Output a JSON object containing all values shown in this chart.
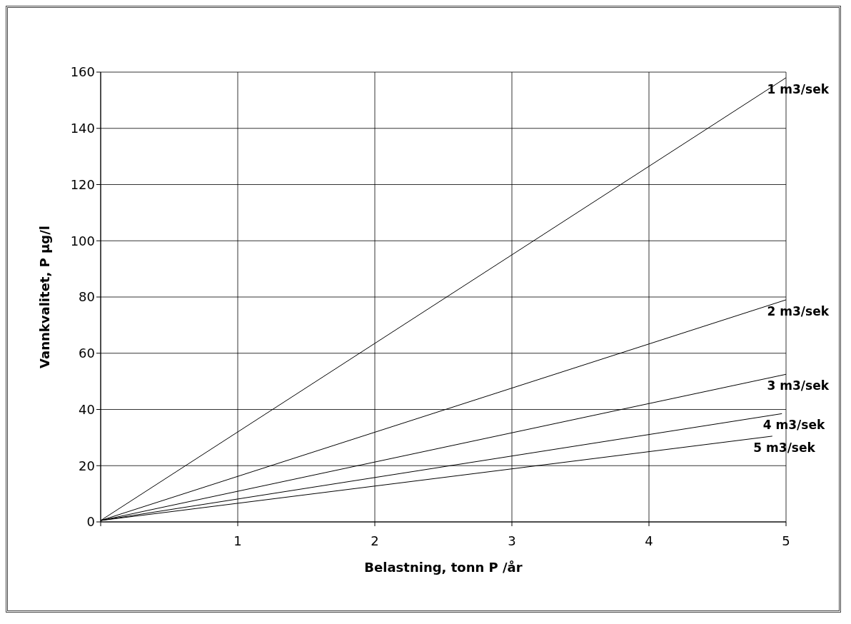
{
  "chart_data": {
    "type": "line",
    "xlabel": "Belastning, tonn P /år",
    "ylabel": "Vannkvalitet, P µg/l",
    "xlim": [
      0,
      5
    ],
    "xticks": [
      {
        "value": 0,
        "label": null
      },
      1,
      2,
      3,
      4,
      5
    ],
    "ylim": [
      0,
      160
    ],
    "yticks": [
      0,
      20,
      40,
      60,
      80,
      100,
      120,
      140,
      160
    ],
    "grid": true,
    "legend": false,
    "marker": "none",
    "line_style": "solid",
    "series": [
      {
        "name": "1 m3/sek",
        "color": "#000000",
        "x": [
          0,
          5
        ],
        "values": [
          0.5,
          158
        ]
      },
      {
        "name": "2 m3/sek",
        "color": "#000000",
        "x": [
          0,
          5
        ],
        "values": [
          0.5,
          79
        ]
      },
      {
        "name": "3 m3/sek",
        "color": "#000000",
        "x": [
          0,
          5
        ],
        "values": [
          0.5,
          52.5
        ]
      },
      {
        "name": "4 m3/sek",
        "color": "#000000",
        "x": [
          0,
          4.97
        ],
        "values": [
          0.5,
          38.5
        ]
      },
      {
        "name": "5 m3/sek",
        "color": "#000000",
        "x": [
          0,
          4.9
        ],
        "values": [
          0.5,
          30.5
        ]
      }
    ]
  }
}
